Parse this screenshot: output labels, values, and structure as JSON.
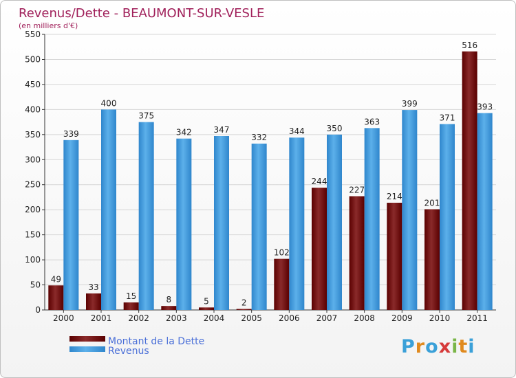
{
  "chart_data": {
    "type": "bar",
    "title": "Revenus/Dette - BEAUMONT-SUR-VESLE",
    "subtitle": "(en milliers d'€)",
    "categories": [
      "2000",
      "2001",
      "2002",
      "2003",
      "2004",
      "2005",
      "2006",
      "2007",
      "2008",
      "2009",
      "2010",
      "2011"
    ],
    "series": [
      {
        "name": "Montant de la Dette",
        "color": "#7a1a1a",
        "values": [
          49,
          33,
          15,
          8,
          5,
          2,
          102,
          244,
          227,
          214,
          201,
          516
        ]
      },
      {
        "name": "Revenus",
        "color": "#4fa3e0",
        "values": [
          339,
          400,
          375,
          342,
          347,
          332,
          344,
          350,
          363,
          399,
          371,
          393
        ]
      }
    ],
    "ylim": [
      0,
      550
    ],
    "yticks": [
      0,
      50,
      100,
      150,
      200,
      250,
      300,
      350,
      400,
      450,
      500,
      550
    ],
    "grid": true,
    "legend_position": "bottom-left"
  },
  "logo": {
    "letters": [
      "P",
      "r",
      "o",
      "x",
      "i",
      "t",
      "i"
    ],
    "colors": [
      "#3aa0d8",
      "#e08a1e",
      "#3aa0d8",
      "#d63a3a",
      "#7ab648",
      "#e08a1e",
      "#3aa0d8"
    ]
  }
}
